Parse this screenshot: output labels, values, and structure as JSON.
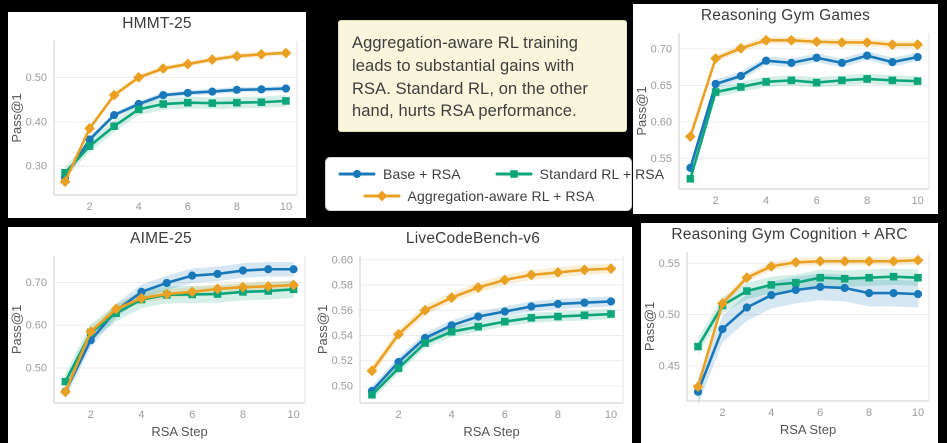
{
  "note_box": {
    "text": "Aggregation-aware RL training\nleads to substantial gains with\nRSA. Standard RL, on the other\nhand, hurts RSA performance."
  },
  "series_meta": {
    "base": {
      "label": "Base + RSA",
      "color": "#1878b9",
      "marker": "circle"
    },
    "standard": {
      "label": "Standard RL + RSA",
      "color": "#0ca67a",
      "marker": "square"
    },
    "agg": {
      "label": "Aggregation-aware RL + RSA",
      "color": "#e9a023",
      "marker": "diamond"
    }
  },
  "legend": {
    "items": [
      {
        "key": "base",
        "label": "Base + RSA"
      },
      {
        "key": "standard",
        "label": "Standard RL + RSA"
      },
      {
        "key": "agg",
        "label": "Aggregation-aware RL + RSA"
      }
    ]
  },
  "chart_data": [
    {
      "type": "line",
      "title": "HMMT-25",
      "ylabel": "Pass@1",
      "xlabel": "",
      "x": [
        1,
        2,
        3,
        4,
        5,
        6,
        7,
        8,
        9,
        10
      ],
      "xticks": [
        2,
        4,
        6,
        8,
        10
      ],
      "yticks": [
        0.3,
        0.4,
        0.5
      ],
      "xlim": [
        0.55,
        10.45
      ],
      "ylim": [
        0.235,
        0.582
      ],
      "grid": "horizontal",
      "legend_position": "external",
      "series": [
        {
          "key": "base",
          "name": "Base + RSA",
          "band": 0.006,
          "values": [
            0.275,
            0.36,
            0.415,
            0.44,
            0.46,
            0.465,
            0.468,
            0.472,
            0.473,
            0.475
          ]
        },
        {
          "key": "standard",
          "name": "Standard RL + RSA",
          "band": 0.013,
          "values": [
            0.285,
            0.345,
            0.39,
            0.428,
            0.44,
            0.443,
            0.442,
            0.443,
            0.444,
            0.447
          ]
        },
        {
          "key": "agg",
          "name": "Aggregation-aware RL + RSA",
          "band": 0.006,
          "values": [
            0.265,
            0.385,
            0.46,
            0.5,
            0.52,
            0.53,
            0.54,
            0.548,
            0.552,
            0.555
          ]
        }
      ]
    },
    {
      "type": "line",
      "title": "Reasoning Gym Games",
      "ylabel": "Pass@1",
      "xlabel": "",
      "x": [
        1,
        2,
        3,
        4,
        5,
        6,
        7,
        8,
        9,
        10
      ],
      "xticks": [
        2,
        4,
        6,
        8,
        10
      ],
      "yticks": [
        0.55,
        0.6,
        0.65,
        0.7
      ],
      "xlim": [
        0.55,
        10.45
      ],
      "ylim": [
        0.508,
        0.722
      ],
      "grid": "horizontal",
      "legend_position": "external",
      "series": [
        {
          "key": "base",
          "name": "Base + RSA",
          "band": 0.006,
          "values": [
            0.537,
            0.652,
            0.663,
            0.684,
            0.681,
            0.688,
            0.681,
            0.691,
            0.682,
            0.689
          ]
        },
        {
          "key": "standard",
          "name": "Standard RL + RSA",
          "band": 0.007,
          "values": [
            0.522,
            0.641,
            0.648,
            0.655,
            0.657,
            0.654,
            0.657,
            0.659,
            0.657,
            0.656
          ]
        },
        {
          "key": "agg",
          "name": "Aggregation-aware RL + RSA",
          "band": 0.005,
          "values": [
            0.58,
            0.687,
            0.701,
            0.712,
            0.712,
            0.71,
            0.709,
            0.709,
            0.706,
            0.706
          ]
        }
      ]
    },
    {
      "type": "line",
      "title": "AIME-25",
      "ylabel": "Pass@1",
      "xlabel": "RSA Step",
      "x": [
        1,
        2,
        3,
        4,
        5,
        6,
        7,
        8,
        9,
        10
      ],
      "xticks": [
        2,
        4,
        6,
        8,
        10
      ],
      "yticks": [
        0.5,
        0.6,
        0.7
      ],
      "xlim": [
        0.55,
        10.45
      ],
      "ylim": [
        0.418,
        0.762
      ],
      "grid": "horizontal",
      "legend_position": "external",
      "series": [
        {
          "key": "base",
          "name": "Base + RSA",
          "band": 0.017,
          "values": [
            0.445,
            0.565,
            0.634,
            0.678,
            0.699,
            0.716,
            0.72,
            0.728,
            0.731,
            0.731
          ]
        },
        {
          "key": "standard",
          "name": "Standard RL + RSA",
          "band": 0.02,
          "values": [
            0.468,
            0.583,
            0.628,
            0.66,
            0.671,
            0.672,
            0.673,
            0.678,
            0.68,
            0.684
          ]
        },
        {
          "key": "agg",
          "name": "Aggregation-aware RL + RSA",
          "band": 0.011,
          "values": [
            0.444,
            0.585,
            0.638,
            0.663,
            0.673,
            0.678,
            0.685,
            0.689,
            0.691,
            0.694
          ]
        }
      ]
    },
    {
      "type": "line",
      "title": "LiveCodeBench-v6",
      "ylabel": "Pass@1",
      "xlabel": "RSA Step",
      "x": [
        1,
        2,
        3,
        4,
        5,
        6,
        7,
        8,
        9,
        10
      ],
      "xticks": [
        2,
        4,
        6,
        8,
        10
      ],
      "yticks": [
        0.5,
        0.52,
        0.54,
        0.56,
        0.58,
        0.6
      ],
      "xlim": [
        0.55,
        10.45
      ],
      "ylim": [
        0.4865,
        0.603
      ],
      "grid": "horizontal",
      "legend_position": "external",
      "series": [
        {
          "key": "base",
          "name": "Base + RSA",
          "band": 0.004,
          "values": [
            0.496,
            0.519,
            0.538,
            0.548,
            0.555,
            0.559,
            0.563,
            0.565,
            0.566,
            0.567
          ]
        },
        {
          "key": "standard",
          "name": "Standard RL + RSA",
          "band": 0.004,
          "values": [
            0.493,
            0.514,
            0.534,
            0.543,
            0.547,
            0.551,
            0.554,
            0.555,
            0.556,
            0.557
          ]
        },
        {
          "key": "agg",
          "name": "Aggregation-aware RL + RSA",
          "band": 0.004,
          "values": [
            0.512,
            0.541,
            0.56,
            0.57,
            0.578,
            0.584,
            0.588,
            0.59,
            0.592,
            0.593
          ]
        }
      ]
    },
    {
      "type": "line",
      "title": "Reasoning Gym Cognition + ARC",
      "ylabel": "Pass@1",
      "xlabel": "RSA Step",
      "x": [
        1,
        2,
        3,
        4,
        5,
        6,
        7,
        8,
        9,
        10
      ],
      "xticks": [
        2,
        4,
        6,
        8,
        10
      ],
      "yticks": [
        0.45,
        0.5,
        0.55
      ],
      "xlim": [
        0.55,
        10.45
      ],
      "ylim": [
        0.416,
        0.561
      ],
      "grid": "horizontal",
      "legend_position": "external",
      "series": [
        {
          "key": "base",
          "name": "Base + RSA",
          "band": 0.013,
          "values": [
            0.425,
            0.486,
            0.507,
            0.519,
            0.524,
            0.527,
            0.526,
            0.521,
            0.521,
            0.52
          ]
        },
        {
          "key": "standard",
          "name": "Standard RL + RSA",
          "band": 0.008,
          "values": [
            0.469,
            0.509,
            0.523,
            0.529,
            0.531,
            0.536,
            0.535,
            0.536,
            0.537,
            0.536
          ]
        },
        {
          "key": "agg",
          "name": "Aggregation-aware RL + RSA",
          "band": 0.004,
          "values": [
            0.43,
            0.511,
            0.536,
            0.547,
            0.551,
            0.552,
            0.552,
            0.552,
            0.552,
            0.553
          ]
        }
      ]
    }
  ]
}
